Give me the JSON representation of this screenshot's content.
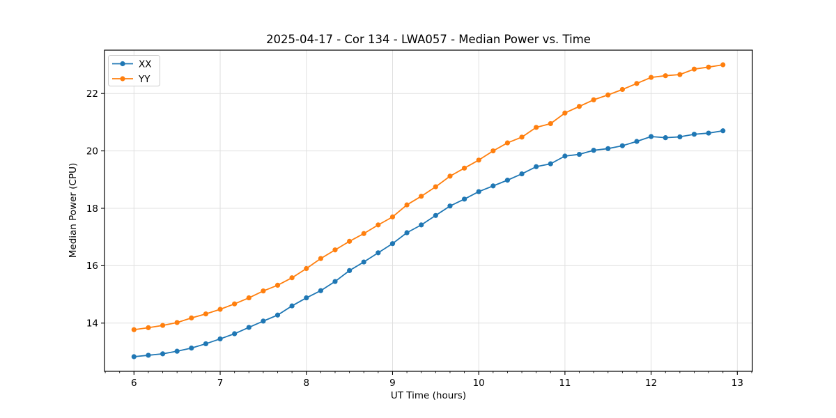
{
  "page": {
    "background": "#ffffff"
  },
  "chart_data": {
    "type": "line",
    "title": "2025-04-17 - Cor 134 - LWA057 - Median Power vs. Time",
    "xlabel": "UT Time (hours)",
    "ylabel": "Median Power (CPU)",
    "xlim": [
      5.658,
      13.175
    ],
    "ylim": [
      12.32,
      23.51
    ],
    "xticks": [
      6,
      7,
      8,
      9,
      10,
      11,
      12,
      13
    ],
    "yticks": [
      14,
      16,
      18,
      20,
      22
    ],
    "x_minor_step": 0.1666667,
    "grid": true,
    "grid_color": "#e0e0e0",
    "spine_color": "#000000",
    "legend_position": "upper-left",
    "x": [
      6.0,
      6.1667,
      6.3333,
      6.5,
      6.6667,
      6.8333,
      7.0,
      7.1667,
      7.3333,
      7.5,
      7.6667,
      7.8333,
      8.0,
      8.1667,
      8.3333,
      8.5,
      8.6667,
      8.8333,
      9.0,
      9.1667,
      9.3333,
      9.5,
      9.6667,
      9.8333,
      10.0,
      10.1667,
      10.3333,
      10.5,
      10.6667,
      10.8333,
      11.0,
      11.1667,
      11.3333,
      11.5,
      11.6667,
      11.8333,
      12.0,
      12.1667,
      12.3333,
      12.5,
      12.6667,
      12.8333
    ],
    "series": [
      {
        "name": "XX",
        "color": "#1f77b4",
        "values": [
          12.83,
          12.88,
          12.93,
          13.02,
          13.13,
          13.28,
          13.45,
          13.63,
          13.85,
          14.07,
          14.28,
          14.6,
          14.88,
          15.13,
          15.45,
          15.83,
          16.13,
          16.45,
          16.77,
          17.15,
          17.42,
          17.75,
          18.08,
          18.32,
          18.58,
          18.78,
          18.98,
          19.2,
          19.45,
          19.55,
          19.82,
          19.88,
          20.02,
          20.08,
          20.18,
          20.33,
          20.5,
          20.46,
          20.49,
          20.58,
          20.62,
          20.7
        ]
      },
      {
        "name": "YY",
        "color": "#ff7f0e",
        "values": [
          13.77,
          13.84,
          13.92,
          14.02,
          14.18,
          14.32,
          14.48,
          14.67,
          14.88,
          15.12,
          15.32,
          15.58,
          15.9,
          16.25,
          16.55,
          16.85,
          17.12,
          17.42,
          17.7,
          18.12,
          18.42,
          18.75,
          19.12,
          19.4,
          19.68,
          20.0,
          20.28,
          20.48,
          20.82,
          20.95,
          21.32,
          21.55,
          21.78,
          21.95,
          22.14,
          22.35,
          22.56,
          22.62,
          22.66,
          22.85,
          22.92,
          23.0
        ]
      }
    ]
  }
}
